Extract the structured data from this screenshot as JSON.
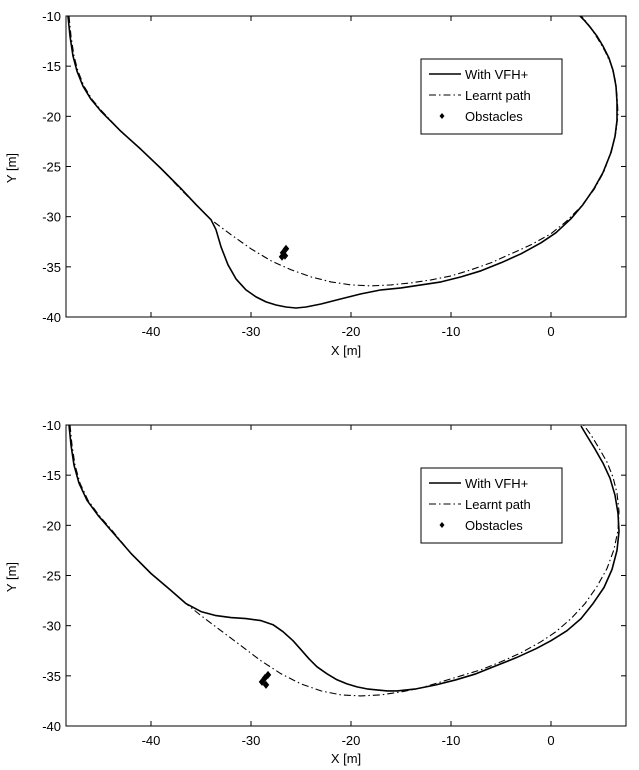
{
  "chart_data": [
    {
      "type": "line",
      "xlabel": "X [m]",
      "ylabel": "Y [m]",
      "xlim": [
        -48.5,
        7.5
      ],
      "ylim": [
        -40,
        -10
      ],
      "xticks": [
        -40,
        -30,
        -20,
        -10,
        0
      ],
      "yticks": [
        -10,
        -15,
        -20,
        -25,
        -30,
        -35,
        -40
      ],
      "grid": false,
      "legend_position": "top-right",
      "series": [
        {
          "name": "With VFH+",
          "style": "solid",
          "x": [
            -48.3,
            -48.1,
            -47.8,
            -47.4,
            -46.8,
            -46.0,
            -45.0,
            -43.0,
            -41.0,
            -39.0,
            -37.0,
            -35.5,
            -34.5,
            -34.0,
            -33.5,
            -33.0,
            -32.3,
            -31.5,
            -30.5,
            -29.5,
            -28.5,
            -27.5,
            -26.5,
            -25.5,
            -24.5,
            -23.0,
            -21.0,
            -19.0,
            -17.0,
            -15.0,
            -13.0,
            -11.0,
            -9.0,
            -7.0,
            -5.0,
            -3.0,
            -1.0,
            0.5,
            2.0,
            3.2,
            4.3,
            5.2,
            6.0,
            6.4,
            6.6,
            6.6,
            6.5,
            6.2,
            5.8,
            5.2,
            4.6,
            3.9,
            3.3,
            2.8
          ],
          "y": [
            -10.0,
            -12.0,
            -14.0,
            -15.5,
            -17.0,
            -18.3,
            -19.5,
            -21.5,
            -23.3,
            -25.2,
            -27.2,
            -28.8,
            -29.8,
            -30.3,
            -31.3,
            -33.0,
            -34.8,
            -36.2,
            -37.3,
            -38.0,
            -38.5,
            -38.8,
            -39.0,
            -39.1,
            -39.0,
            -38.7,
            -38.2,
            -37.7,
            -37.3,
            -37.1,
            -36.8,
            -36.5,
            -36.0,
            -35.4,
            -34.6,
            -33.7,
            -32.6,
            -31.6,
            -30.2,
            -28.8,
            -27.2,
            -25.6,
            -23.6,
            -22.0,
            -20.4,
            -18.6,
            -17.0,
            -15.4,
            -14.2,
            -13.0,
            -12.0,
            -11.1,
            -10.4,
            -9.9
          ]
        },
        {
          "name": "Learnt path",
          "style": "dash-dot",
          "x": [
            -48.2,
            -48.0,
            -47.7,
            -47.3,
            -46.7,
            -45.9,
            -44.9,
            -43.0,
            -41.0,
            -39.0,
            -37.0,
            -35.5,
            -34.0,
            -32.0,
            -30.0,
            -28.0,
            -26.0,
            -24.0,
            -22.0,
            -20.0,
            -18.0,
            -16.0,
            -14.0,
            -12.0,
            -10.0,
            -8.0,
            -6.0,
            -4.0,
            -2.0,
            0.0,
            1.5,
            3.0,
            4.3,
            5.3,
            6.0,
            6.5,
            6.7,
            6.6,
            6.4,
            6.0,
            5.4,
            4.7,
            4.0,
            3.3,
            2.8
          ],
          "y": [
            -10.0,
            -12.0,
            -14.0,
            -15.5,
            -17.0,
            -18.3,
            -19.5,
            -21.5,
            -23.3,
            -25.2,
            -27.3,
            -28.8,
            -30.3,
            -31.8,
            -33.2,
            -34.4,
            -35.3,
            -36.0,
            -36.5,
            -36.8,
            -36.9,
            -36.8,
            -36.6,
            -36.3,
            -35.9,
            -35.3,
            -34.6,
            -33.7,
            -32.8,
            -31.7,
            -30.5,
            -29.0,
            -27.3,
            -25.5,
            -23.5,
            -21.6,
            -19.7,
            -17.9,
            -16.3,
            -14.8,
            -13.5,
            -12.3,
            -11.2,
            -10.3,
            -9.8
          ]
        },
        {
          "name": "Obstacles",
          "style": "markers",
          "x": [
            -26.5,
            -26.8,
            -26.6,
            -26.9
          ],
          "y": [
            -33.2,
            -33.6,
            -33.9,
            -34.0
          ]
        }
      ]
    },
    {
      "type": "line",
      "xlabel": "X [m]",
      "ylabel": "Y [m]",
      "xlim": [
        -48.5,
        7.5
      ],
      "ylim": [
        -40,
        -10
      ],
      "xticks": [
        -40,
        -30,
        -20,
        -10,
        0
      ],
      "yticks": [
        -10,
        -15,
        -20,
        -25,
        -30,
        -35,
        -40
      ],
      "grid": false,
      "legend_position": "top-right",
      "series": [
        {
          "name": "With VFH+",
          "style": "solid",
          "x": [
            -48.2,
            -48.0,
            -47.7,
            -47.2,
            -46.4,
            -45.3,
            -44.0,
            -42.0,
            -40.0,
            -38.0,
            -36.5,
            -35.0,
            -33.5,
            -32.0,
            -30.5,
            -29.0,
            -27.8,
            -26.8,
            -25.8,
            -25.0,
            -24.2,
            -23.4,
            -22.4,
            -21.4,
            -20.4,
            -19.4,
            -18.4,
            -17.4,
            -16.4,
            -15.4,
            -13.5,
            -11.5,
            -9.5,
            -7.5,
            -5.5,
            -3.5,
            -1.5,
            0.0,
            1.6,
            3.0,
            4.2,
            5.3,
            6.1,
            6.6,
            6.8,
            6.7,
            6.4,
            5.9,
            5.2,
            4.4,
            3.6,
            3.0
          ],
          "y": [
            -10.0,
            -12.0,
            -14.0,
            -15.8,
            -17.5,
            -19.0,
            -20.5,
            -22.8,
            -24.8,
            -26.5,
            -27.8,
            -28.6,
            -29.0,
            -29.2,
            -29.3,
            -29.5,
            -29.9,
            -30.6,
            -31.5,
            -32.4,
            -33.3,
            -34.1,
            -34.8,
            -35.4,
            -35.8,
            -36.1,
            -36.3,
            -36.4,
            -36.5,
            -36.5,
            -36.3,
            -35.9,
            -35.4,
            -34.8,
            -34.0,
            -33.2,
            -32.3,
            -31.5,
            -30.5,
            -29.3,
            -27.8,
            -26.2,
            -24.4,
            -22.5,
            -20.6,
            -18.8,
            -17.0,
            -15.3,
            -13.8,
            -12.4,
            -11.1,
            -10.1
          ]
        },
        {
          "name": "Learnt path",
          "style": "dash-dot",
          "x": [
            -48.1,
            -47.9,
            -47.6,
            -47.1,
            -46.3,
            -45.2,
            -43.9,
            -42.0,
            -40.0,
            -38.0,
            -36.5,
            -35.0,
            -33.0,
            -31.0,
            -29.0,
            -27.0,
            -25.0,
            -23.0,
            -21.0,
            -19.0,
            -17.0,
            -15.0,
            -13.0,
            -11.0,
            -9.0,
            -7.0,
            -5.0,
            -3.0,
            -1.0,
            0.5,
            2.0,
            3.4,
            4.6,
            5.6,
            6.3,
            6.7,
            6.8,
            6.6,
            6.2,
            5.6,
            4.8,
            4.0,
            3.2
          ],
          "y": [
            -10.0,
            -12.0,
            -14.0,
            -15.8,
            -17.5,
            -19.0,
            -20.5,
            -22.8,
            -24.8,
            -26.5,
            -27.8,
            -29.0,
            -30.5,
            -32.0,
            -33.5,
            -34.8,
            -35.8,
            -36.5,
            -36.9,
            -37.0,
            -36.9,
            -36.6,
            -36.2,
            -35.6,
            -35.0,
            -34.4,
            -33.6,
            -32.7,
            -31.6,
            -30.6,
            -29.3,
            -27.8,
            -26.1,
            -24.3,
            -22.4,
            -20.5,
            -18.6,
            -16.8,
            -15.2,
            -13.7,
            -12.3,
            -11.0,
            -9.9
          ]
        },
        {
          "name": "Obstacles",
          "style": "markers",
          "x": [
            -28.3,
            -28.6,
            -28.9,
            -28.5
          ],
          "y": [
            -34.9,
            -35.2,
            -35.6,
            -35.9
          ]
        }
      ]
    }
  ]
}
